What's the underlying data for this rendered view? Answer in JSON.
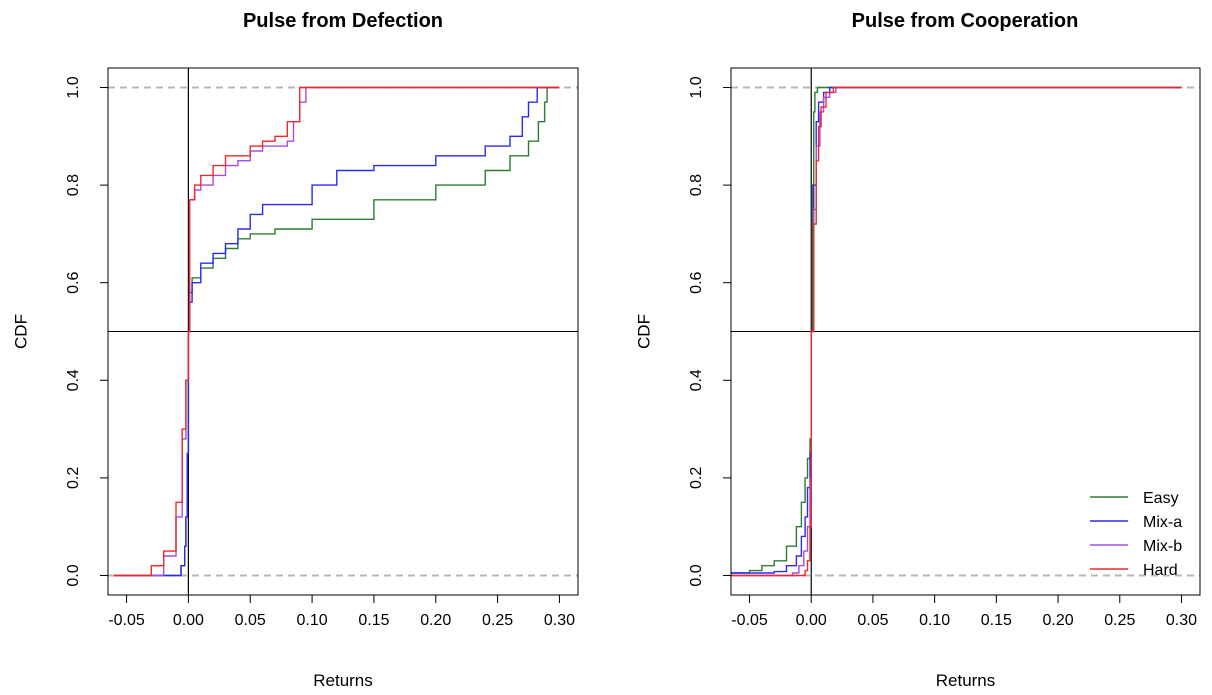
{
  "colors": {
    "Easy": "#2e7d32",
    "Mix-a": "#2b2bf0",
    "Mix-b": "#a64de0",
    "Hard": "#ee2a2a",
    "ref_dashed": "#b8b8b8",
    "ref_line": "#000000"
  },
  "chart_data": [
    {
      "type": "line",
      "title": "Pulse from Defection",
      "xlabel": "Returns",
      "ylabel": "CDF",
      "xlim": [
        -0.065,
        0.315
      ],
      "ylim": [
        -0.04,
        1.04
      ],
      "xticks": [
        "-0.05",
        "0.00",
        "0.05",
        "0.10",
        "0.15",
        "0.20",
        "0.25",
        "0.30"
      ],
      "yticks": [
        "0.0",
        "0.2",
        "0.4",
        "0.6",
        "0.8",
        "1.0"
      ],
      "reference_lines": {
        "vertical_x": 0.0,
        "horizontal_y": 0.5,
        "dashed_y": [
          0.0,
          1.0
        ]
      },
      "legend": null,
      "series": [
        {
          "name": "Easy",
          "x": [
            -0.06,
            -0.012,
            -0.006,
            -0.003,
            -0.002,
            -0.001,
            0.0,
            0.001,
            0.003,
            0.01,
            0.02,
            0.03,
            0.04,
            0.05,
            0.07,
            0.1,
            0.15,
            0.2,
            0.24,
            0.26,
            0.275,
            0.283,
            0.288,
            0.29,
            0.3
          ],
          "y": [
            0.0,
            0.0,
            0.02,
            0.06,
            0.12,
            0.25,
            0.5,
            0.58,
            0.61,
            0.63,
            0.65,
            0.67,
            0.69,
            0.7,
            0.71,
            0.73,
            0.77,
            0.8,
            0.83,
            0.86,
            0.89,
            0.93,
            0.97,
            1.0,
            1.0
          ]
        },
        {
          "name": "Mix-a",
          "x": [
            -0.06,
            -0.012,
            -0.006,
            -0.003,
            -0.002,
            -0.001,
            0.0,
            0.001,
            0.003,
            0.01,
            0.02,
            0.03,
            0.04,
            0.05,
            0.06,
            0.1,
            0.12,
            0.15,
            0.2,
            0.24,
            0.26,
            0.27,
            0.275,
            0.282,
            0.3
          ],
          "y": [
            0.0,
            0.0,
            0.02,
            0.06,
            0.12,
            0.25,
            0.5,
            0.56,
            0.6,
            0.64,
            0.66,
            0.68,
            0.71,
            0.74,
            0.76,
            0.8,
            0.83,
            0.84,
            0.86,
            0.88,
            0.9,
            0.94,
            0.97,
            1.0,
            1.0
          ]
        },
        {
          "name": "Mix-b",
          "x": [
            -0.06,
            -0.03,
            -0.02,
            -0.01,
            -0.005,
            -0.002,
            0.0,
            0.001,
            0.005,
            0.01,
            0.02,
            0.03,
            0.04,
            0.05,
            0.06,
            0.07,
            0.08,
            0.085,
            0.09,
            0.095,
            0.3
          ],
          "y": [
            0.0,
            0.0,
            0.04,
            0.12,
            0.28,
            0.4,
            0.5,
            0.77,
            0.79,
            0.8,
            0.82,
            0.84,
            0.85,
            0.87,
            0.88,
            0.88,
            0.89,
            0.93,
            0.97,
            1.0,
            1.0
          ]
        },
        {
          "name": "Hard",
          "x": [
            -0.06,
            -0.04,
            -0.03,
            -0.02,
            -0.01,
            -0.005,
            -0.002,
            0.0,
            0.001,
            0.005,
            0.01,
            0.02,
            0.03,
            0.04,
            0.05,
            0.06,
            0.07,
            0.08,
            0.09,
            0.3
          ],
          "y": [
            0.0,
            0.0,
            0.02,
            0.05,
            0.15,
            0.3,
            0.4,
            0.5,
            0.77,
            0.8,
            0.82,
            0.84,
            0.86,
            0.86,
            0.88,
            0.89,
            0.9,
            0.93,
            1.0,
            1.0
          ]
        }
      ]
    },
    {
      "type": "line",
      "title": "Pulse from Cooperation",
      "xlabel": "Returns",
      "ylabel": "CDF",
      "xlim": [
        -0.065,
        0.315
      ],
      "ylim": [
        -0.04,
        1.04
      ],
      "xticks": [
        "-0.05",
        "0.00",
        "0.05",
        "0.10",
        "0.15",
        "0.20",
        "0.25",
        "0.30"
      ],
      "yticks": [
        "0.0",
        "0.2",
        "0.4",
        "0.6",
        "0.8",
        "1.0"
      ],
      "reference_lines": {
        "vertical_x": 0.0,
        "horizontal_y": 0.5,
        "dashed_y": [
          0.0,
          1.0
        ]
      },
      "legend": {
        "position": "bottom-right",
        "entries": [
          "Easy",
          "Mix-a",
          "Mix-b",
          "Hard"
        ]
      },
      "series": [
        {
          "name": "Easy",
          "x": [
            -0.065,
            -0.05,
            -0.04,
            -0.03,
            -0.02,
            -0.012,
            -0.008,
            -0.005,
            -0.003,
            -0.001,
            0.0,
            0.001,
            0.002,
            0.003,
            0.005,
            0.3
          ],
          "y": [
            0.005,
            0.01,
            0.02,
            0.03,
            0.06,
            0.1,
            0.15,
            0.2,
            0.24,
            0.28,
            0.5,
            0.8,
            0.95,
            0.99,
            1.0,
            1.0
          ]
        },
        {
          "name": "Mix-a",
          "x": [
            -0.065,
            -0.03,
            -0.02,
            -0.012,
            -0.008,
            -0.005,
            -0.003,
            -0.001,
            0.0,
            0.002,
            0.004,
            0.006,
            0.01,
            0.015,
            0.3
          ],
          "y": [
            0.005,
            0.008,
            0.02,
            0.04,
            0.08,
            0.12,
            0.18,
            0.25,
            0.5,
            0.8,
            0.93,
            0.97,
            0.99,
            1.0,
            1.0
          ]
        },
        {
          "name": "Mix-b",
          "x": [
            -0.065,
            -0.03,
            -0.015,
            -0.01,
            -0.006,
            -0.003,
            -0.001,
            0.0,
            0.002,
            0.004,
            0.007,
            0.01,
            0.015,
            0.02,
            0.03,
            0.3
          ],
          "y": [
            0.0,
            0.0,
            0.005,
            0.02,
            0.05,
            0.1,
            0.2,
            0.5,
            0.75,
            0.88,
            0.95,
            0.98,
            0.99,
            1.0,
            1.0,
            1.0
          ]
        },
        {
          "name": "Hard",
          "x": [
            -0.065,
            -0.01,
            -0.005,
            -0.003,
            -0.001,
            0.0,
            0.002,
            0.004,
            0.006,
            0.008,
            0.012,
            0.018,
            0.3
          ],
          "y": [
            0.0,
            0.0,
            0.01,
            0.03,
            0.1,
            0.5,
            0.72,
            0.85,
            0.92,
            0.96,
            0.99,
            1.0,
            1.0
          ]
        }
      ]
    }
  ]
}
